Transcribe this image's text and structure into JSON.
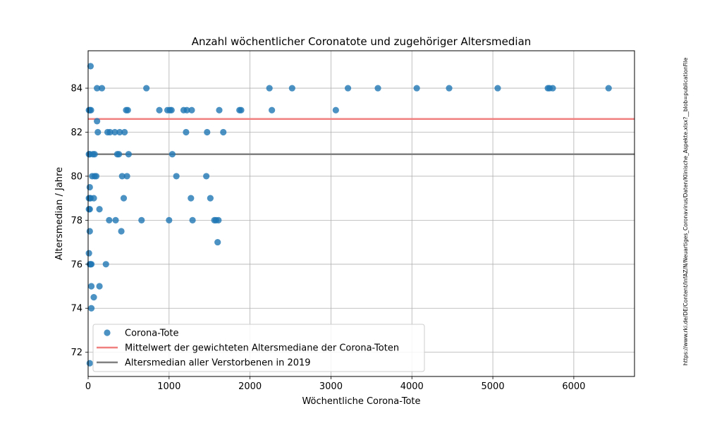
{
  "chart_data": {
    "type": "scatter",
    "title": "Anzahl wöchentlicher Coronatote und zugehöriger Altersmedian",
    "xlabel": "Wöchentliche Corona-Tote",
    "ylabel": "Altersmedian / Jahre",
    "xlim": [
      0,
      6750
    ],
    "ylim": [
      70.9,
      85.7
    ],
    "xticks": [
      0,
      1000,
      2000,
      3000,
      4000,
      5000,
      6000
    ],
    "yticks": [
      72,
      74,
      76,
      78,
      80,
      82,
      84
    ],
    "grid": true,
    "legend_position": "lower-left",
    "source_note": "https://www.rki.de/DE/Content/InfAZ/N/Neuartiges_Coronavirus/Daten/Klinische_Aspekte.xlsx?__blob=publicationFile",
    "series": [
      {
        "name": "Corona-Tote",
        "kind": "scatter",
        "color": "#1f77b4",
        "points": [
          [
            30,
            85
          ],
          [
            20,
            83
          ],
          [
            35,
            83
          ],
          [
            10,
            83
          ],
          [
            110,
            84
          ],
          [
            170,
            84
          ],
          [
            720,
            84
          ],
          [
            2240,
            84
          ],
          [
            2520,
            84
          ],
          [
            3210,
            84
          ],
          [
            3580,
            84
          ],
          [
            4060,
            84
          ],
          [
            4460,
            84
          ],
          [
            5060,
            84
          ],
          [
            5680,
            84
          ],
          [
            5700,
            84
          ],
          [
            5740,
            84
          ],
          [
            6430,
            84
          ],
          [
            880,
            83
          ],
          [
            980,
            83
          ],
          [
            1010,
            83
          ],
          [
            1030,
            83
          ],
          [
            1180,
            83
          ],
          [
            1220,
            83
          ],
          [
            1280,
            83
          ],
          [
            1620,
            83
          ],
          [
            1870,
            83
          ],
          [
            1890,
            83
          ],
          [
            2270,
            83
          ],
          [
            3060,
            83
          ],
          [
            470,
            83
          ],
          [
            490,
            83
          ],
          [
            110,
            82.5
          ],
          [
            120,
            82
          ],
          [
            240,
            82
          ],
          [
            270,
            82
          ],
          [
            330,
            82
          ],
          [
            390,
            82
          ],
          [
            450,
            82
          ],
          [
            1210,
            82
          ],
          [
            1470,
            82
          ],
          [
            1670,
            82
          ],
          [
            10,
            81
          ],
          [
            20,
            81
          ],
          [
            60,
            81
          ],
          [
            80,
            81
          ],
          [
            360,
            81
          ],
          [
            380,
            81
          ],
          [
            500,
            81
          ],
          [
            1040,
            81
          ],
          [
            50,
            80
          ],
          [
            80,
            80
          ],
          [
            100,
            80
          ],
          [
            420,
            80
          ],
          [
            480,
            80
          ],
          [
            1090,
            80
          ],
          [
            1460,
            80
          ],
          [
            20,
            79.5
          ],
          [
            10,
            79
          ],
          [
            20,
            79
          ],
          [
            30,
            79
          ],
          [
            70,
            79
          ],
          [
            440,
            79
          ],
          [
            1270,
            79
          ],
          [
            1510,
            79
          ],
          [
            10,
            78.5
          ],
          [
            20,
            78.5
          ],
          [
            140,
            78.5
          ],
          [
            260,
            78
          ],
          [
            340,
            78
          ],
          [
            660,
            78
          ],
          [
            1000,
            78
          ],
          [
            1290,
            78
          ],
          [
            1560,
            78
          ],
          [
            1580,
            78
          ],
          [
            1610,
            78
          ],
          [
            20,
            77.5
          ],
          [
            410,
            77.5
          ],
          [
            1600,
            77
          ],
          [
            10,
            76.5
          ],
          [
            20,
            76
          ],
          [
            30,
            76
          ],
          [
            40,
            76
          ],
          [
            220,
            76
          ],
          [
            40,
            75
          ],
          [
            140,
            75
          ],
          [
            70,
            74.5
          ],
          [
            40,
            74
          ],
          [
            20,
            71.5
          ]
        ]
      },
      {
        "name": "Mittelwert der gewichteten Altersmediane der Corona-Toten",
        "kind": "hline",
        "y": 82.6,
        "color": "#f08080"
      },
      {
        "name": "Altersmedian aller Verstorbenen in 2019",
        "kind": "hline",
        "y": 81,
        "color": "#808080"
      }
    ]
  }
}
